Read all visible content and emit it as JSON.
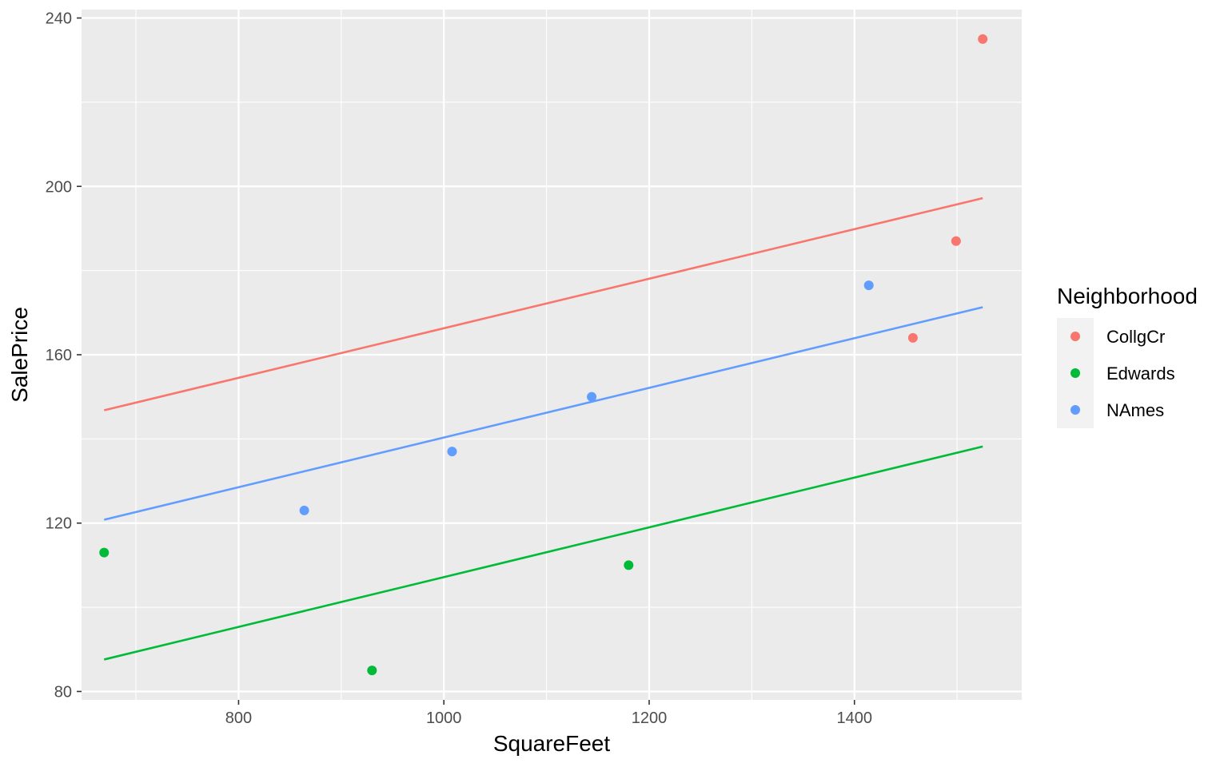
{
  "chart_data": {
    "type": "scatter",
    "title": "",
    "xlabel": "SquareFeet",
    "ylabel": "SalePrice",
    "xlim": [
      647,
      1563
    ],
    "ylim": [
      78,
      242
    ],
    "x_ticks": [
      800,
      1000,
      1200,
      1400
    ],
    "x_minor_ticks": [
      700,
      900,
      1100,
      1300,
      1500
    ],
    "y_ticks": [
      80,
      120,
      160,
      200,
      240
    ],
    "y_minor_ticks": [
      100,
      140,
      180,
      220
    ],
    "grid": true,
    "legend": {
      "title": "Neighborhood",
      "position": "right"
    },
    "series": [
      {
        "name": "CollgCr",
        "color": "#F8766D",
        "points": [
          {
            "x": 1457,
            "y": 164
          },
          {
            "x": 1499,
            "y": 187
          },
          {
            "x": 1525,
            "y": 235
          }
        ],
        "fit_line": {
          "x": [
            669,
            1525
          ],
          "y": [
            146.8,
            197.2
          ]
        }
      },
      {
        "name": "Edwards",
        "color": "#00BA38",
        "points": [
          {
            "x": 669,
            "y": 113
          },
          {
            "x": 930,
            "y": 85
          },
          {
            "x": 1180,
            "y": 110
          }
        ],
        "fit_line": {
          "x": [
            669,
            1525
          ],
          "y": [
            87.6,
            138.2
          ]
        }
      },
      {
        "name": "NAmes",
        "color": "#619CFF",
        "points": [
          {
            "x": 864,
            "y": 123
          },
          {
            "x": 1008,
            "y": 137
          },
          {
            "x": 1144,
            "y": 150
          },
          {
            "x": 1414,
            "y": 176.5
          }
        ],
        "fit_line": {
          "x": [
            669,
            1525
          ],
          "y": [
            120.8,
            171.3
          ]
        }
      }
    ]
  }
}
